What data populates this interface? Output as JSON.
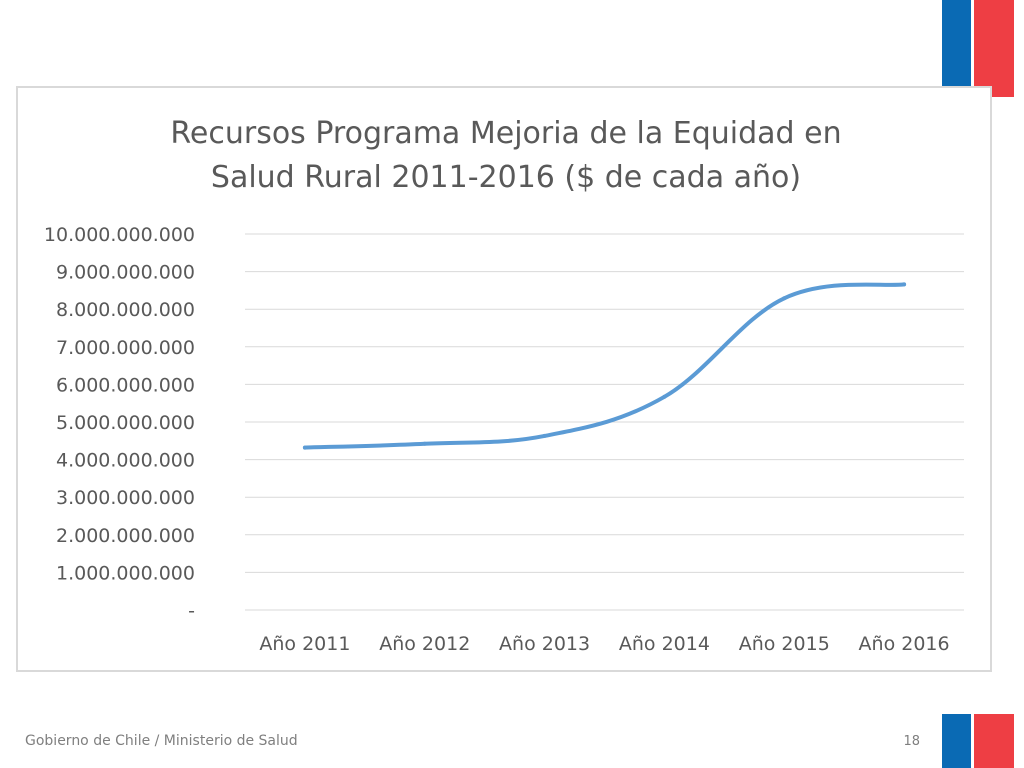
{
  "slide": {
    "footer": "Gobierno de Chile / Ministerio de Salud",
    "page_number": "18",
    "colors": {
      "flag_blue": "#0a6ab4",
      "flag_red": "#ee3e44",
      "line": "#5b9bd5",
      "grid": "#d9d9d9",
      "text": "#595959"
    }
  },
  "chart_data": {
    "type": "line",
    "title_lines": [
      "Recursos Programa Mejoria de la Equidad en",
      "Salud Rural 2011-2016 ($ de cada año)"
    ],
    "categories": [
      "Año 2011",
      "Año 2012",
      "Año 2013",
      "Año 2014",
      "Año 2015",
      "Año 2016"
    ],
    "series": [
      {
        "values": [
          4320000000,
          4420000000,
          4630000000,
          5670000000,
          8290000000,
          8660000000
        ]
      }
    ],
    "ylim": [
      0,
      10000000000
    ],
    "yticks": [
      0,
      1000000000,
      2000000000,
      3000000000,
      4000000000,
      5000000000,
      6000000000,
      7000000000,
      8000000000,
      9000000000,
      10000000000
    ],
    "ytick_labels": [
      "-",
      "1.000.000.000",
      "2.000.000.000",
      "3.000.000.000",
      "4.000.000.000",
      "5.000.000.000",
      "6.000.000.000",
      "7.000.000.000",
      "8.000.000.000",
      "9.000.000.000",
      "10.000.000.000"
    ],
    "grid": true,
    "legend": "none"
  }
}
